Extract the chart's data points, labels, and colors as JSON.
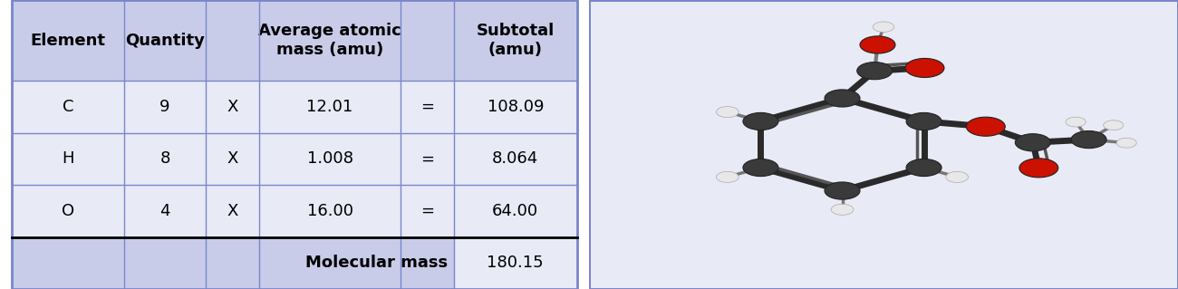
{
  "header_bg": "#c8cce8",
  "cell_bg": "#e8eaf6",
  "border_color": "#7986cb",
  "text_color": "#000000",
  "headers": [
    "Element",
    "Quantity",
    "",
    "Average atomic\nmass (amu)",
    "",
    "Subtotal\n(amu)"
  ],
  "rows": [
    [
      "C",
      "9",
      "X",
      "12.01",
      "=",
      "108.09"
    ],
    [
      "H",
      "8",
      "X",
      "1.008",
      "=",
      "8.064"
    ],
    [
      "O",
      "4",
      "X",
      "16.00",
      "=",
      "64.00"
    ]
  ],
  "footer_label": "Molecular mass",
  "footer_value": "180.15",
  "font_size": 13,
  "header_font_size": 13,
  "col_starts": [
    0.02,
    0.21,
    0.35,
    0.44,
    0.68,
    0.77
  ],
  "col_ends": [
    0.21,
    0.35,
    0.44,
    0.68,
    0.77,
    0.98
  ],
  "row_tops": [
    1.0,
    0.72,
    0.54,
    0.36,
    0.18,
    0.0
  ]
}
